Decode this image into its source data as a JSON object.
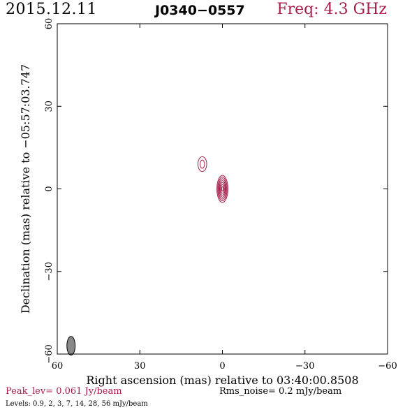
{
  "header": {
    "date": "2015.12.11",
    "source": "J0340−0557",
    "frequency": "Freq: 4.3 GHz"
  },
  "footer": {
    "peak": "Peak_lev=  0.061 Jy/beam",
    "rms": "Rms_noise=   0.2 mJy/beam",
    "levels": "Levels: 0.9,    2,    3,    7,   14,   28,   56 mJy/beam"
  },
  "colors": {
    "contour": "#a61e4d",
    "axis": "#000000",
    "beam_fill": "#888888"
  },
  "chart_data": {
    "type": "contour",
    "xlabel": "Right ascension (mas) relative to 03:40:00.8508",
    "ylabel": "Declination (mas) relative to −05:57:03.747",
    "xlim": [
      60,
      -60
    ],
    "ylim": [
      -60,
      60
    ],
    "x_ticks": [
      60,
      30,
      0,
      -30,
      -60
    ],
    "x_tick_labels": [
      "60",
      "30",
      "0",
      "−30",
      "−60"
    ],
    "y_ticks": [
      -60,
      -30,
      0,
      30,
      60
    ],
    "y_tick_labels": [
      "−60",
      "−30",
      "0",
      "30",
      "60"
    ],
    "levels_mJy_per_beam": [
      0.9,
      2,
      3,
      7,
      14,
      28,
      56
    ],
    "components": [
      {
        "x": 0.0,
        "y": 0.0,
        "contours": [
          {
            "rx": 2.0,
            "ry": 4.9
          },
          {
            "rx": 1.7,
            "ry": 4.3
          },
          {
            "rx": 1.4,
            "ry": 3.7
          },
          {
            "rx": 1.15,
            "ry": 3.0
          },
          {
            "rx": 0.9,
            "ry": 2.3
          },
          {
            "rx": 0.6,
            "ry": 1.6
          },
          {
            "rx": 0.3,
            "ry": 0.8
          }
        ]
      },
      {
        "x": 7.3,
        "y": 9.0,
        "contours": [
          {
            "rx": 1.6,
            "ry": 2.7
          },
          {
            "rx": 0.8,
            "ry": 1.5
          }
        ]
      }
    ],
    "beam": {
      "x": 55.0,
      "y": -57.0,
      "major": 3.4,
      "minor": 1.5,
      "pa_deg": 0
    },
    "grid": false
  }
}
